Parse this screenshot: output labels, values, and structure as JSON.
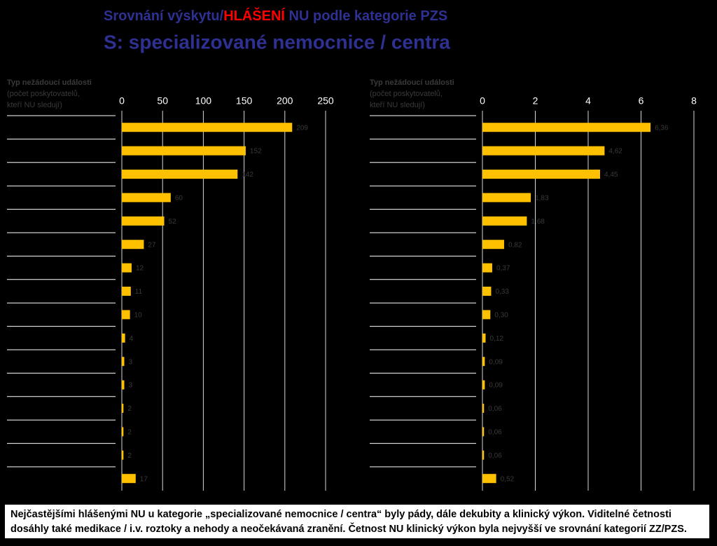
{
  "header": {
    "title_parts": [
      "Srovnání výskytu/",
      "HLÁŠENÍ",
      " NU podle kategorie PZS"
    ],
    "subtitle": "S: specializované nemocnice / centra"
  },
  "chart_data": [
    {
      "type": "barh",
      "y_label": [
        "Typ nežádoucí události",
        "(počet poskytovatelů,",
        "kteří NU sledují)"
      ],
      "categories": [
        null,
        null,
        null,
        null,
        null,
        null,
        null,
        null,
        null,
        null,
        null,
        null,
        null,
        null,
        null,
        null
      ],
      "values": [
        209,
        152,
        142,
        60,
        52,
        27,
        12,
        11,
        10,
        4,
        3,
        3,
        2,
        2,
        2,
        17
      ],
      "color": "#ffc000",
      "xlim": [
        0,
        250
      ],
      "xticks": [
        0,
        50,
        100,
        150,
        200,
        250
      ],
      "grid": true
    },
    {
      "type": "barh",
      "y_label": [
        "Typ nežádoucí události",
        "(počet poskytovatelů,",
        "kteří NU sledují)"
      ],
      "categories": [
        null,
        null,
        null,
        null,
        null,
        null,
        null,
        null,
        null,
        null,
        null,
        null,
        null,
        null,
        null,
        null
      ],
      "values": [
        6.36,
        4.62,
        4.45,
        1.83,
        1.68,
        0.82,
        0.37,
        0.33,
        0.3,
        0.12,
        0.09,
        0.09,
        0.06,
        0.06,
        0.06,
        0.52
      ],
      "value_labels": [
        "6,36",
        "4,62",
        "4,45",
        "1,83",
        "1,68",
        "0,82",
        "0,37",
        "0,33",
        "0,30",
        "0,12",
        "0,09",
        "0,09",
        "0,06",
        "0,06",
        "0,06",
        "0,52"
      ],
      "color": "#ffc000",
      "xlim": [
        0,
        8
      ],
      "xticks": [
        0,
        2,
        4,
        6,
        8
      ],
      "grid": true
    }
  ],
  "note": [
    "Nejčastějšími hlášenými NU u kategorie „specializované nemocnice / centra“ byly pády, dále dekubity a klinický výkon. Viditelné četnosti",
    "dosáhly také medikace / i.v. roztoky a nehody a neočekávaná zranění. Četnost NU klinický výkon byla nejvyšší ve srovnání kategorií ZZ/PZS."
  ]
}
